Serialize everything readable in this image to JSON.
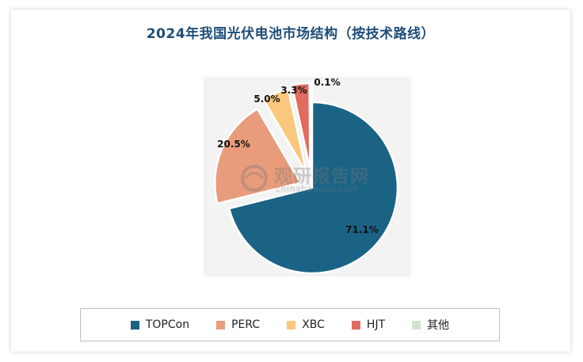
{
  "chart_data": {
    "type": "pie",
    "title": "2024年我国光伏电池市场结构（按技术路线）",
    "slices": [
      {
        "name": "TOPCon",
        "value": 71.1,
        "label": "71.1%",
        "color": "#1b6385"
      },
      {
        "name": "PERC",
        "value": 20.5,
        "label": "20.5%",
        "color": "#e89c7c"
      },
      {
        "name": "XBC",
        "value": 5.0,
        "label": "5.0%",
        "color": "#f9c77d"
      },
      {
        "name": "HJT",
        "value": 3.3,
        "label": "3.3%",
        "color": "#e06b5e"
      },
      {
        "name": "其他",
        "value": 0.1,
        "label": "0.1%",
        "color": "#cfe3d2"
      }
    ],
    "legend_position": "bottom",
    "exploded": true
  },
  "watermark": {
    "name_cn": "观研报告网",
    "domain": "chinabaogao.com"
  }
}
